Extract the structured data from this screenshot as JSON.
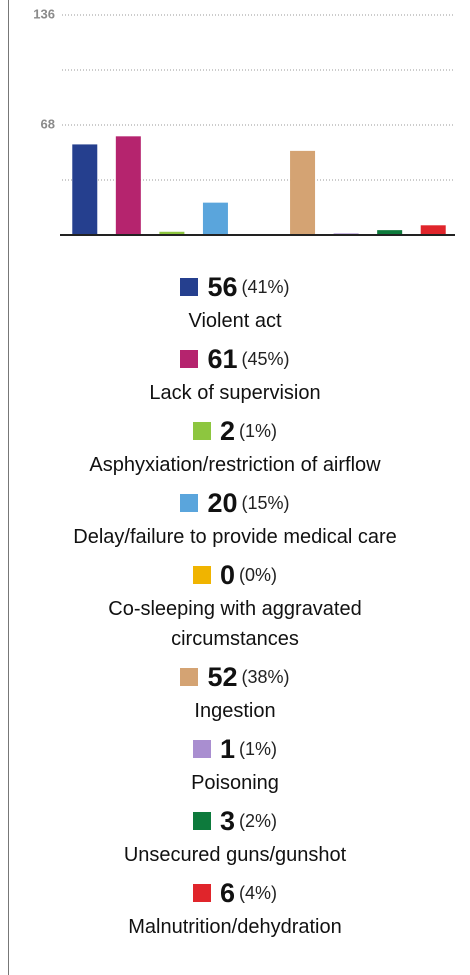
{
  "chart_data": {
    "type": "bar",
    "categories": [
      "Violent act",
      "Lack of supervision",
      "Asphyxiation/restriction of airflow",
      "Delay/failure to provide medical care",
      "Co-sleeping with aggravated circumstances",
      "Ingestion",
      "Poisoning",
      "Unsecured guns/gunshot",
      "Malnutrition/dehydration"
    ],
    "values": [
      56,
      61,
      2,
      20,
      0,
      52,
      1,
      3,
      6
    ],
    "shares": [
      41,
      45,
      1,
      15,
      0,
      38,
      1,
      2,
      4
    ],
    "share_labels": [
      "(41%)",
      "(45%)",
      "(1%)",
      "(15%)",
      "(0%)",
      "(38%)",
      "(1%)",
      "(2%)",
      "(4%)"
    ],
    "colors": [
      "#253f8e",
      "#b5246e",
      "#8dc63f",
      "#5aa5dc",
      "#f0b400",
      "#d4a373",
      "#a98ed0",
      "#0d7a3c",
      "#e0252b"
    ],
    "ylim": [
      0,
      136
    ],
    "yticks": [
      136,
      68
    ],
    "minor_yticks": [
      102,
      34
    ],
    "grid": true
  }
}
